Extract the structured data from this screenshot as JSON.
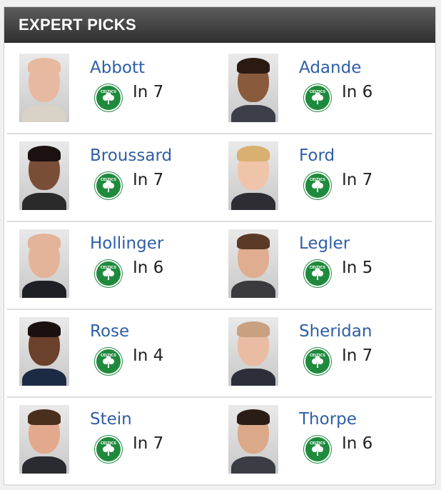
{
  "header": {
    "title": "EXPERT PICKS"
  },
  "rows": [
    [
      {
        "name": "Abbott",
        "pick": "In 7",
        "skin": "#e7b9a0",
        "hair": "#e7b9a0",
        "shirt": "#d9d2c6"
      },
      {
        "name": "Adande",
        "pick": "In 6",
        "skin": "#8a5a3c",
        "hair": "#2a1a12",
        "shirt": "#3d3f48"
      }
    ],
    [
      {
        "name": "Broussard",
        "pick": "In 7",
        "skin": "#7a4e36",
        "hair": "#1b1110",
        "shirt": "#2a2a2a"
      },
      {
        "name": "Ford",
        "pick": "In 7",
        "skin": "#f0c4a8",
        "hair": "#d9b070",
        "shirt": "#2d2d33"
      }
    ],
    [
      {
        "name": "Hollinger",
        "pick": "In 6",
        "skin": "#e3b49a",
        "hair": "#e3b49a",
        "shirt": "#1f1f26"
      },
      {
        "name": "Legler",
        "pick": "In 5",
        "skin": "#e0ad90",
        "hair": "#5a3a26",
        "shirt": "#3a3a3f"
      }
    ],
    [
      {
        "name": "Rose",
        "pick": "In 4",
        "skin": "#6b412b",
        "hair": "#1a1010",
        "shirt": "#1d2a44"
      },
      {
        "name": "Sheridan",
        "pick": "In 7",
        "skin": "#e9bca3",
        "hair": "#c9a080",
        "shirt": "#2c2f3a"
      }
    ],
    [
      {
        "name": "Stein",
        "pick": "In 7",
        "skin": "#e2a98c",
        "hair": "#4a2e1e",
        "shirt": "#2a2b30"
      },
      {
        "name": "Thorpe",
        "pick": "In 6",
        "skin": "#dba889",
        "hair": "#2a1d16",
        "shirt": "#3a3d44"
      }
    ]
  ],
  "team_logo": {
    "icon": "celtics-shamrock-icon",
    "color": "#1f8a3d"
  }
}
